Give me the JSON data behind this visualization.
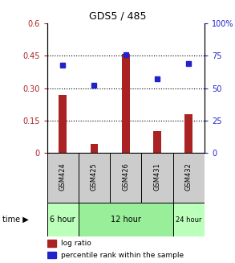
{
  "title": "GDS5 / 485",
  "categories": [
    "GSM424",
    "GSM425",
    "GSM426",
    "GSM431",
    "GSM432"
  ],
  "log_ratio": [
    0.27,
    0.04,
    0.46,
    0.1,
    0.18
  ],
  "percentile_rank": [
    68,
    52,
    76,
    57,
    69
  ],
  "bar_color": "#aa2222",
  "dot_color": "#2222cc",
  "ylim_left": [
    0,
    0.6
  ],
  "ylim_right": [
    0,
    100
  ],
  "yticks_left": [
    0,
    0.15,
    0.3,
    0.45,
    0.6
  ],
  "ytick_labels_left": [
    "0",
    "0.15",
    "0.30",
    "0.45",
    "0.6"
  ],
  "yticks_right": [
    0,
    25,
    50,
    75,
    100
  ],
  "ytick_labels_right": [
    "0",
    "25",
    "50",
    "75",
    "100%"
  ],
  "hgrid_vals": [
    0.15,
    0.3,
    0.45
  ],
  "time_groups": [
    {
      "label": "6 hour",
      "samples": [
        "GSM424"
      ],
      "color": "#bbffbb"
    },
    {
      "label": "12 hour",
      "samples": [
        "GSM425",
        "GSM426",
        "GSM431"
      ],
      "color": "#99ee99"
    },
    {
      "label": "24 hour",
      "samples": [
        "GSM432"
      ],
      "color": "#bbffbb"
    }
  ],
  "legend_log_ratio": "log ratio",
  "legend_percentile": "percentile rank within the sample",
  "sample_bg": "#cccccc",
  "bar_width": 0.25
}
